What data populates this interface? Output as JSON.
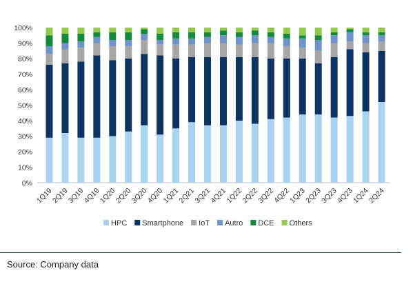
{
  "chart_data": {
    "type": "bar",
    "stacked": true,
    "categories": [
      "1Q19",
      "2Q19",
      "3Q19",
      "4Q19",
      "1Q20",
      "2Q20",
      "3Q20",
      "4Q20",
      "1Q21",
      "2Q21",
      "3Q21",
      "4Q21",
      "1Q22",
      "2Q22",
      "3Q22",
      "4Q22",
      "1Q23",
      "2Q23",
      "3Q23",
      "4Q23",
      "1Q24",
      "2Q24"
    ],
    "series": [
      {
        "name": "HPC",
        "color": "#a9d3f0",
        "values": [
          29,
          32,
          29,
          29,
          30,
          33,
          37,
          31,
          35,
          39,
          37,
          37,
          40,
          38,
          41,
          42,
          44,
          44,
          42,
          43,
          46,
          52
        ]
      },
      {
        "name": "Smartphone",
        "color": "#0d3461",
        "values": [
          47,
          45,
          49,
          53,
          49,
          47,
          46,
          51,
          45,
          42,
          44,
          44,
          41,
          43,
          39,
          38,
          36,
          33,
          39,
          43,
          38,
          33
        ]
      },
      {
        "name": "IoT",
        "color": "#a6a6a6",
        "values": [
          7,
          9,
          9,
          8,
          9,
          8,
          9,
          7,
          9,
          8,
          9,
          9,
          8,
          9,
          10,
          8,
          7,
          8,
          9,
          5,
          6,
          6
        ]
      },
      {
        "name": "Autro",
        "color": "#7094c9",
        "values": [
          5,
          4,
          4,
          4,
          4,
          4,
          4,
          3,
          4,
          4,
          4,
          5,
          5,
          5,
          4,
          5,
          6,
          7,
          5,
          6,
          5,
          4
        ]
      },
      {
        "name": "DCE",
        "color": "#138a3c",
        "values": [
          7,
          6,
          5,
          3,
          5,
          5,
          3,
          4,
          4,
          4,
          3,
          3,
          3,
          3,
          3,
          3,
          2,
          3,
          2,
          2,
          2,
          2
        ]
      },
      {
        "name": "Others",
        "color": "#93c94e",
        "values": [
          5,
          4,
          4,
          3,
          3,
          3,
          1,
          4,
          3,
          3,
          3,
          2,
          3,
          2,
          3,
          4,
          5,
          5,
          3,
          1,
          3,
          3
        ]
      }
    ],
    "ylim": [
      0,
      100
    ],
    "yticks": [
      "0%",
      "10%",
      "20%",
      "30%",
      "40%",
      "50%",
      "60%",
      "70%",
      "80%",
      "90%",
      "100%"
    ],
    "legend_position": "bottom",
    "grid": false
  },
  "source_note": "Source: Company data"
}
